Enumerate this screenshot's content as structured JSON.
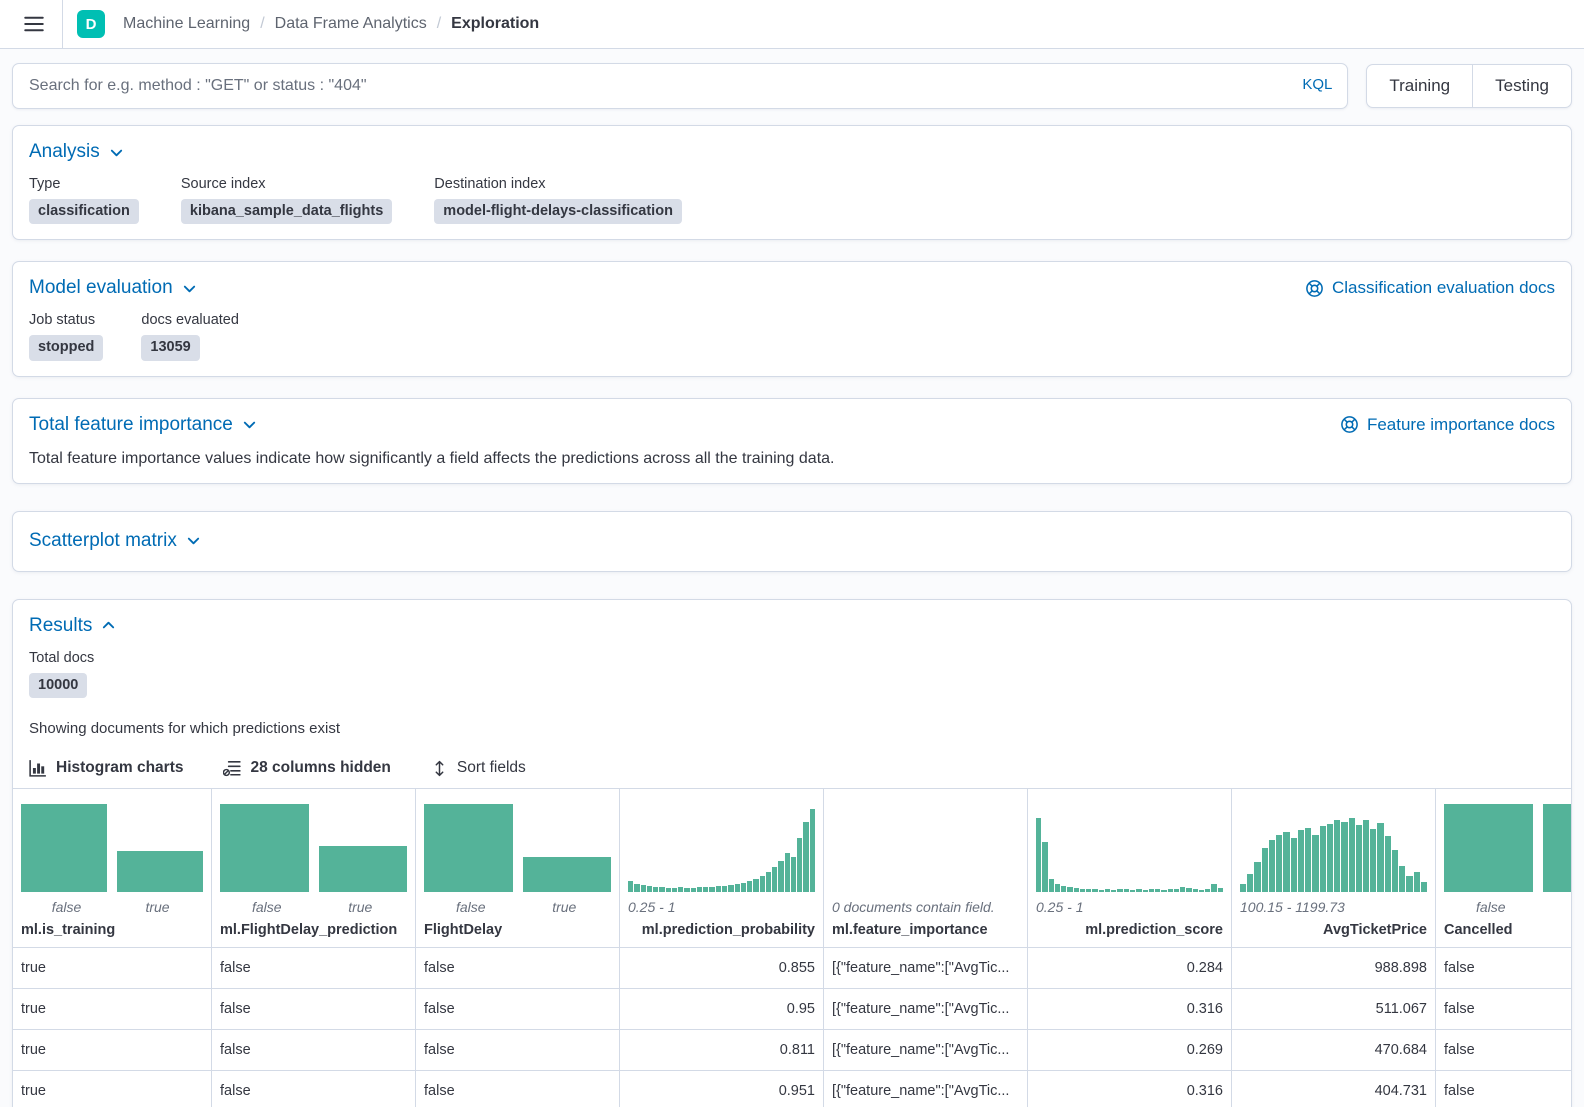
{
  "header": {
    "space_badge": "D",
    "breadcrumbs": [
      {
        "label": "Machine Learning"
      },
      {
        "label": "Data Frame Analytics"
      },
      {
        "label": "Exploration"
      }
    ]
  },
  "query_bar": {
    "placeholder": "Search for e.g. method : \"GET\" or status : \"404\"",
    "kql_label": "KQL",
    "training_label": "Training",
    "testing_label": "Testing"
  },
  "panels": {
    "analysis": {
      "title": "Analysis",
      "fields": [
        {
          "label": "Type",
          "value": "classification"
        },
        {
          "label": "Source index",
          "value": "kibana_sample_data_flights"
        },
        {
          "label": "Destination index",
          "value": "model-flight-delays-classification"
        }
      ]
    },
    "model_evaluation": {
      "title": "Model evaluation",
      "doc_link": "Classification evaluation docs",
      "fields": [
        {
          "label": "Job status",
          "value": "stopped"
        },
        {
          "label": "docs evaluated",
          "value": "13059"
        }
      ]
    },
    "total_feature_importance": {
      "title": "Total feature importance",
      "doc_link": "Feature importance docs",
      "description": "Total feature importance values indicate how significantly a field affects the predictions across all the training data."
    },
    "scatterplot_matrix": {
      "title": "Scatterplot matrix"
    },
    "results": {
      "title": "Results",
      "total_docs_label": "Total docs",
      "total_docs_value": "10000",
      "subtitle": "Showing documents for which predictions exist",
      "toolbar": {
        "histogram_charts": "Histogram charts",
        "columns_hidden": "28 columns hidden",
        "sort_fields": "Sort fields"
      }
    }
  },
  "colors": {
    "accent_blue": "#006bb4",
    "histogram_bar": "#54b399",
    "space_badge": "#00bfb3"
  },
  "grid": {
    "columns": [
      {
        "id": "ml-is-training",
        "name": "ml.is_training",
        "align": "left",
        "bars": [
          88,
          41
        ],
        "labels": [
          "false",
          "true"
        ]
      },
      {
        "id": "ml-flightdelay-prediction",
        "name": "ml.FlightDelay_prediction",
        "align": "left",
        "bars": [
          88,
          46
        ],
        "labels": [
          "false",
          "true"
        ]
      },
      {
        "id": "flightdelay",
        "name": "FlightDelay",
        "align": "left",
        "bars": [
          88,
          35
        ],
        "labels": [
          "false",
          "true"
        ]
      },
      {
        "id": "ml-prediction-probability",
        "name": "ml.prediction_probability",
        "align": "right",
        "range_label": "0.25 - 1",
        "bars": [
          11,
          8,
          7,
          6,
          5,
          5,
          4,
          4,
          5,
          4,
          4,
          5,
          5,
          5,
          6,
          6,
          7,
          8,
          9,
          11,
          13,
          16,
          20,
          25,
          31,
          39,
          35,
          54,
          70,
          83
        ]
      },
      {
        "id": "ml-feature-importance",
        "name": "ml.feature_importance",
        "align": "left",
        "empty_text": "0 documents contain field.",
        "bars": []
      },
      {
        "id": "ml-prediction-score",
        "name": "ml.prediction_score",
        "align": "right",
        "range_label": "0.25 - 1",
        "bars": [
          74,
          50,
          13,
          8,
          6,
          5,
          4,
          3,
          3,
          3,
          2,
          3,
          2,
          3,
          3,
          2,
          3,
          2,
          3,
          3,
          2,
          3,
          3,
          5,
          4,
          3,
          2,
          3,
          8,
          4
        ]
      },
      {
        "id": "avgticketprice",
        "name": "AvgTicketPrice",
        "align": "right",
        "range_label": "100.15 - 1199.73",
        "bars": [
          8,
          18,
          30,
          44,
          52,
          57,
          60,
          54,
          62,
          64,
          57,
          66,
          68,
          72,
          70,
          74,
          67,
          72,
          63,
          69,
          56,
          42,
          26,
          16,
          20,
          10
        ]
      },
      {
        "id": "cancelled",
        "name": "Cancelled",
        "align": "left",
        "bars": [
          88,
          88
        ],
        "labels": [
          "false",
          "true"
        ]
      }
    ],
    "rows": [
      [
        "true",
        "false",
        "false",
        "0.855",
        "[{\"feature_name\":[\"AvgTic...",
        "0.284",
        "988.898",
        "false"
      ],
      [
        "true",
        "false",
        "false",
        "0.95",
        "[{\"feature_name\":[\"AvgTic...",
        "0.316",
        "511.067",
        "false"
      ],
      [
        "true",
        "false",
        "false",
        "0.811",
        "[{\"feature_name\":[\"AvgTic...",
        "0.269",
        "470.684",
        "false"
      ],
      [
        "true",
        "false",
        "false",
        "0.951",
        "[{\"feature_name\":[\"AvgTic...",
        "0.316",
        "404.731",
        "false"
      ]
    ]
  }
}
